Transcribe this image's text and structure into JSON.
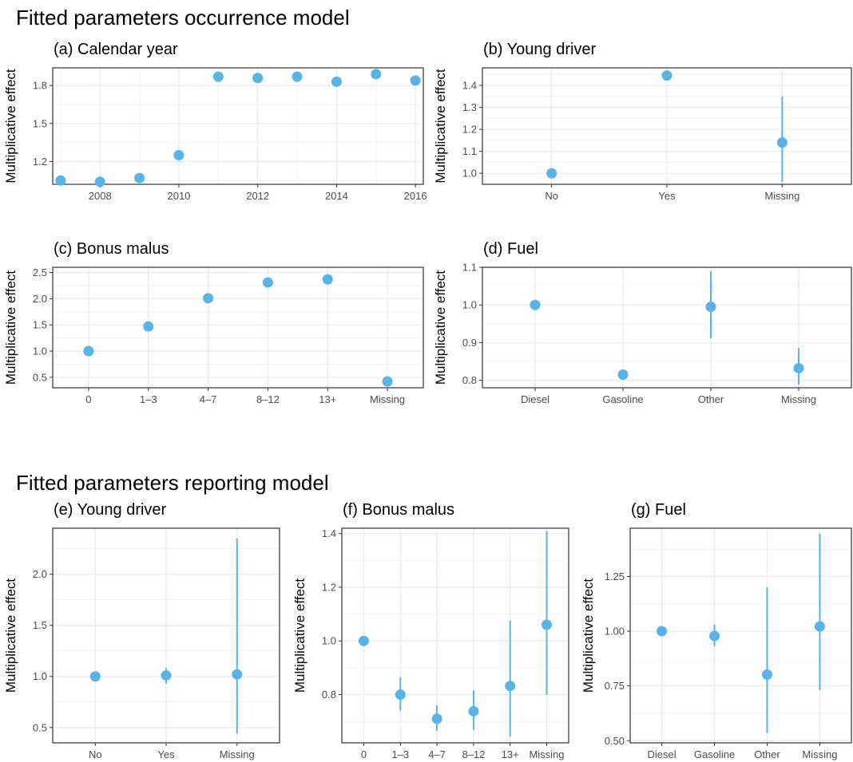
{
  "titles": {
    "occurrence": "Fitted parameters occurrence model",
    "reporting": "Fitted parameters reporting model"
  },
  "colors": {
    "point": "#56B4E9",
    "grid_major": "#ebebeb",
    "grid_minor": "#f4f4f4",
    "panel_border": "#333333",
    "tick_text": "#4d4d4d"
  },
  "chart_data": [
    {
      "id": "a",
      "type": "scatter",
      "title": "(a) Calendar year",
      "ylabel": "Multiplicative effect",
      "x_type": "numeric",
      "xlim": [
        2006.8,
        2016.2
      ],
      "xticks": [
        2008,
        2010,
        2012,
        2014,
        2016
      ],
      "ylim": [
        1.02,
        1.94
      ],
      "yticks": [
        1.2,
        1.5,
        1.8
      ],
      "y_tick_labels": [
        "1.2",
        "1.5",
        "1.8"
      ],
      "points": [
        {
          "x": 2007,
          "y": 1.05
        },
        {
          "x": 2008,
          "y": 1.04
        },
        {
          "x": 2009,
          "y": 1.07
        },
        {
          "x": 2010,
          "y": 1.25
        },
        {
          "x": 2011,
          "y": 1.87
        },
        {
          "x": 2012,
          "y": 1.86
        },
        {
          "x": 2013,
          "y": 1.87
        },
        {
          "x": 2014,
          "y": 1.83
        },
        {
          "x": 2015,
          "y": 1.89
        },
        {
          "x": 2016,
          "y": 1.84
        }
      ]
    },
    {
      "id": "b",
      "type": "scatter",
      "title": "(b) Young driver",
      "ylabel": "Multiplicative effect",
      "x_type": "categorical",
      "categories": [
        "No",
        "Yes",
        "Missing"
      ],
      "ylim": [
        0.95,
        1.48
      ],
      "yticks": [
        1.0,
        1.1,
        1.2,
        1.3,
        1.4
      ],
      "y_tick_labels": [
        "1.0",
        "1.1",
        "1.2",
        "1.3",
        "1.4"
      ],
      "points": [
        {
          "x": "No",
          "y": 1.0
        },
        {
          "x": "Yes",
          "y": 1.445
        },
        {
          "x": "Missing",
          "y": 1.14,
          "lo": 0.96,
          "hi": 1.35
        }
      ]
    },
    {
      "id": "c",
      "type": "scatter",
      "title": "(c) Bonus malus",
      "ylabel": "Multiplicative effect",
      "x_type": "categorical",
      "categories": [
        "0",
        "1–3",
        "4–7",
        "8–12",
        "13+",
        "Missing"
      ],
      "ylim": [
        0.3,
        2.6
      ],
      "yticks": [
        0.5,
        1.0,
        1.5,
        2.0,
        2.5
      ],
      "y_tick_labels": [
        "0.5",
        "1.0",
        "1.5",
        "2.0",
        "2.5"
      ],
      "points": [
        {
          "x": "0",
          "y": 1.0
        },
        {
          "x": "1–3",
          "y": 1.47
        },
        {
          "x": "4–7",
          "y": 2.01
        },
        {
          "x": "8–12",
          "y": 2.31
        },
        {
          "x": "13+",
          "y": 2.37
        },
        {
          "x": "Missing",
          "y": 0.42
        }
      ]
    },
    {
      "id": "d",
      "type": "scatter",
      "title": "(d) Fuel",
      "ylabel": "Multiplicative effect",
      "x_type": "categorical",
      "categories": [
        "Diesel",
        "Gasoline",
        "Other",
        "Missing"
      ],
      "ylim": [
        0.78,
        1.1
      ],
      "yticks": [
        0.8,
        0.9,
        1.0,
        1.1
      ],
      "y_tick_labels": [
        "0.8",
        "0.9",
        "1.0",
        "1.1"
      ],
      "points": [
        {
          "x": "Diesel",
          "y": 1.0
        },
        {
          "x": "Gasoline",
          "y": 0.815
        },
        {
          "x": "Other",
          "y": 0.995,
          "lo": 0.912,
          "hi": 1.09
        },
        {
          "x": "Missing",
          "y": 0.832,
          "lo": 0.788,
          "hi": 0.885
        }
      ]
    },
    {
      "id": "e",
      "type": "scatter",
      "title": "(e) Young driver",
      "ylabel": "Multiplicative effect",
      "x_type": "categorical",
      "categories": [
        "No",
        "Yes",
        "Missing"
      ],
      "ylim": [
        0.35,
        2.45
      ],
      "yticks": [
        0.5,
        1.0,
        1.5,
        2.0
      ],
      "y_tick_labels": [
        "0.5",
        "1.0",
        "1.5",
        "2.0"
      ],
      "points": [
        {
          "x": "No",
          "y": 1.0
        },
        {
          "x": "Yes",
          "y": 1.01,
          "lo": 0.93,
          "hi": 1.08
        },
        {
          "x": "Missing",
          "y": 1.02,
          "lo": 0.44,
          "hi": 2.35
        }
      ]
    },
    {
      "id": "f",
      "type": "scatter",
      "title": "(f) Bonus malus",
      "ylabel": "Multiplicative effect",
      "x_type": "categorical",
      "categories": [
        "0",
        "1–3",
        "4–7",
        "8–12",
        "13+",
        "Missing"
      ],
      "ylim": [
        0.62,
        1.42
      ],
      "yticks": [
        0.8,
        1.0,
        1.2,
        1.4
      ],
      "y_tick_labels": [
        "0.8",
        "1.0",
        "1.2",
        "1.4"
      ],
      "points": [
        {
          "x": "0",
          "y": 1.0
        },
        {
          "x": "1–3",
          "y": 0.8,
          "lo": 0.74,
          "hi": 0.865
        },
        {
          "x": "4–7",
          "y": 0.71,
          "lo": 0.665,
          "hi": 0.76
        },
        {
          "x": "8–12",
          "y": 0.738,
          "lo": 0.668,
          "hi": 0.815
        },
        {
          "x": "13+",
          "y": 0.832,
          "lo": 0.643,
          "hi": 1.075
        },
        {
          "x": "Missing",
          "y": 1.06,
          "lo": 0.798,
          "hi": 1.41
        }
      ]
    },
    {
      "id": "g",
      "type": "scatter",
      "title": "(g) Fuel",
      "ylabel": "Multiplicative effect",
      "x_type": "categorical",
      "categories": [
        "Diesel",
        "Gasoline",
        "Other",
        "Missing"
      ],
      "ylim": [
        0.49,
        1.47
      ],
      "yticks": [
        0.5,
        0.75,
        1.0,
        1.25
      ],
      "y_tick_labels": [
        "0.50",
        "0.75",
        "1.00",
        "1.25"
      ],
      "points": [
        {
          "x": "Diesel",
          "y": 1.0
        },
        {
          "x": "Gasoline",
          "y": 0.978,
          "lo": 0.93,
          "hi": 1.03
        },
        {
          "x": "Other",
          "y": 0.802,
          "lo": 0.535,
          "hi": 1.2
        },
        {
          "x": "Missing",
          "y": 1.022,
          "lo": 0.732,
          "hi": 1.445
        }
      ]
    }
  ]
}
